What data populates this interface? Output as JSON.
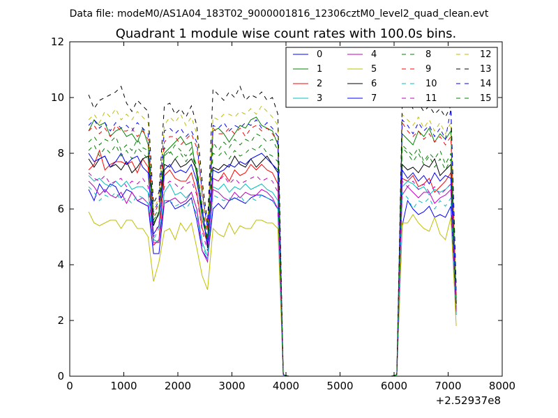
{
  "chart_data": {
    "type": "line",
    "suptitle": "Data file: modeM0/AS1A04_183T02_9000001816_12306cztM0_level2_quad_clean.evt",
    "title": "Quadrant 1 module wise count rates with 100.0s bins.",
    "xlabel": "",
    "ylabel": "",
    "x_offset_label": "+2.52937e8",
    "xlim": [
      0,
      8000
    ],
    "ylim": [
      0,
      12
    ],
    "xticks": [
      0,
      1000,
      2000,
      3000,
      4000,
      5000,
      6000,
      7000,
      8000
    ],
    "yticks": [
      0,
      2,
      4,
      6,
      8,
      10,
      12
    ],
    "grid": false,
    "legend_position": "top-right",
    "legend_columns": 4,
    "x": [
      350,
      450,
      550,
      650,
      750,
      850,
      950,
      1050,
      1150,
      1250,
      1350,
      1450,
      1550,
      1650,
      1750,
      1850,
      1950,
      2050,
      2150,
      2250,
      2350,
      2450,
      2550,
      2650,
      2750,
      2850,
      2950,
      3050,
      3150,
      3250,
      3350,
      3450,
      3550,
      3650,
      3750,
      3850,
      3950,
      4050,
      4150,
      4250,
      4350,
      4450,
      4550,
      4650,
      4750,
      4850,
      4950,
      5050,
      5150,
      5250,
      5350,
      5450,
      5550,
      5650,
      5750,
      5850,
      5950,
      6050,
      6150,
      6250,
      6350,
      6450,
      6550,
      6650,
      6750,
      6850,
      6950,
      7050,
      7150
    ],
    "series": [
      {
        "name": "0",
        "color": "#0000ff",
        "dashed": false,
        "values": [
          6.7,
          6.3,
          6.9,
          6.6,
          6.9,
          6.8,
          6.4,
          6.7,
          6.6,
          6.3,
          6.2,
          6.1,
          4.4,
          4.4,
          6.2,
          6.3,
          6.0,
          6.1,
          6.2,
          6.4,
          5.6,
          4.5,
          4.2,
          6.0,
          6.2,
          6.0,
          6.3,
          6.4,
          6.3,
          6.2,
          6.4,
          6.5,
          6.5,
          6.4,
          6.3,
          6.0,
          0.05,
          0,
          0,
          0,
          0,
          0,
          0,
          0,
          0,
          0,
          0,
          0,
          0,
          0,
          0,
          0,
          0,
          0,
          0,
          0,
          0,
          0.05,
          5.4,
          6.3,
          6.0,
          5.8,
          5.9,
          6.1,
          5.7,
          5.8,
          5.7,
          6.1,
          2.2
        ]
      },
      {
        "name": "1",
        "color": "#008000",
        "dashed": false,
        "values": [
          8.8,
          9.2,
          9.0,
          9.1,
          8.6,
          8.8,
          8.9,
          8.6,
          8.7,
          8.4,
          8.9,
          8.3,
          5.5,
          5.8,
          8.0,
          8.2,
          8.4,
          8.6,
          8.3,
          8.4,
          7.2,
          5.6,
          4.9,
          8.8,
          8.9,
          8.7,
          8.4,
          8.7,
          9.0,
          8.9,
          9.2,
          9.3,
          9.0,
          8.9,
          8.8,
          8.3,
          0.05,
          0,
          0,
          0,
          0,
          0,
          0,
          0,
          0,
          0,
          0,
          0,
          0,
          0,
          0,
          0,
          0,
          0,
          0,
          0,
          0,
          0.05,
          8.7,
          8.5,
          8.3,
          8.8,
          8.6,
          8.9,
          8.4,
          8.7,
          8.5,
          8.8,
          2.6
        ]
      },
      {
        "name": "2",
        "color": "#ff0000",
        "dashed": false,
        "values": [
          7.4,
          7.6,
          8.1,
          7.4,
          7.6,
          7.7,
          7.7,
          7.6,
          7.7,
          7.3,
          7.8,
          7.5,
          4.7,
          4.9,
          7.2,
          7.4,
          7.1,
          7.0,
          7.0,
          7.3,
          6.6,
          5.3,
          4.8,
          7.1,
          7.0,
          7.3,
          7.0,
          7.4,
          7.2,
          7.3,
          7.6,
          7.4,
          7.6,
          7.4,
          7.3,
          6.9,
          0.05,
          0,
          0,
          0,
          0,
          0,
          0,
          0,
          0,
          0,
          0,
          0,
          0,
          0,
          0,
          0,
          0,
          0,
          0,
          0,
          0,
          0.05,
          7.1,
          7.0,
          7.2,
          6.8,
          6.9,
          7.1,
          6.6,
          6.8,
          7.0,
          7.3,
          2.5
        ]
      },
      {
        "name": "3",
        "color": "#00bfbf",
        "dashed": false,
        "values": [
          7.2,
          7.0,
          7.1,
          6.9,
          6.8,
          7.0,
          6.8,
          7.0,
          6.7,
          6.8,
          6.8,
          6.6,
          4.9,
          4.8,
          6.6,
          6.9,
          6.5,
          6.6,
          6.4,
          6.6,
          6.0,
          4.8,
          4.3,
          6.8,
          6.7,
          6.9,
          6.6,
          6.8,
          6.7,
          6.9,
          6.7,
          6.8,
          6.9,
          6.7,
          6.6,
          6.3,
          0.05,
          0,
          0,
          0,
          0,
          0,
          0,
          0,
          0,
          0,
          0,
          0,
          0,
          0,
          0,
          0,
          0,
          0,
          0,
          0,
          0,
          0.05,
          6.8,
          7.0,
          6.9,
          6.7,
          6.8,
          6.5,
          6.7,
          6.6,
          6.7,
          6.9,
          2.4
        ]
      },
      {
        "name": "4",
        "color": "#bf00bf",
        "dashed": false,
        "values": [
          7.0,
          6.8,
          6.5,
          6.7,
          6.5,
          6.4,
          6.6,
          6.2,
          6.6,
          6.3,
          6.4,
          6.2,
          4.8,
          4.8,
          6.3,
          6.3,
          6.4,
          6.2,
          6.3,
          6.6,
          6.0,
          4.5,
          4.1,
          6.7,
          6.6,
          6.4,
          6.3,
          6.6,
          6.4,
          6.6,
          6.5,
          6.5,
          6.7,
          6.6,
          6.4,
          6.0,
          0.05,
          0,
          0,
          0,
          0,
          0,
          0,
          0,
          0,
          0,
          0,
          0,
          0,
          0,
          0,
          0,
          0,
          0,
          0,
          0,
          0,
          0.05,
          6.5,
          6.8,
          6.6,
          6.4,
          6.6,
          6.6,
          6.2,
          6.4,
          6.5,
          6.7,
          2.3
        ]
      },
      {
        "name": "5",
        "color": "#bfbf00",
        "dashed": false,
        "values": [
          5.9,
          5.5,
          5.4,
          5.5,
          5.6,
          5.6,
          5.3,
          5.6,
          5.6,
          5.3,
          5.3,
          5.0,
          3.4,
          4.1,
          5.2,
          5.3,
          4.9,
          5.5,
          5.2,
          5.5,
          4.6,
          3.6,
          3.1,
          5.3,
          5.1,
          5.0,
          5.5,
          5.1,
          5.4,
          5.3,
          5.3,
          5.6,
          5.6,
          5.5,
          5.5,
          5.3,
          0.05,
          0,
          0,
          0,
          0,
          0,
          0,
          0,
          0,
          0,
          0,
          0,
          0,
          0,
          0,
          0,
          0,
          0,
          0,
          0,
          0,
          0.05,
          5.5,
          5.5,
          5.8,
          5.5,
          5.3,
          5.2,
          5.7,
          5.1,
          4.9,
          5.7,
          1.8
        ]
      },
      {
        "name": "6",
        "color": "#000000",
        "dashed": false,
        "values": [
          7.8,
          7.5,
          7.8,
          7.9,
          7.5,
          7.6,
          7.4,
          7.7,
          7.3,
          7.5,
          7.8,
          7.9,
          5.4,
          5.9,
          7.6,
          7.5,
          7.8,
          7.5,
          7.6,
          7.8,
          7.4,
          6.0,
          4.6,
          7.5,
          7.4,
          7.6,
          7.5,
          7.9,
          7.6,
          7.5,
          7.8,
          7.5,
          7.7,
          7.9,
          7.6,
          7.3,
          0.05,
          0,
          0,
          0,
          0,
          0,
          0,
          0,
          0,
          0,
          0,
          0,
          0,
          0,
          0,
          0,
          0,
          0,
          0,
          0,
          0,
          0.05,
          7.6,
          7.4,
          7.5,
          7.3,
          7.6,
          7.5,
          7.8,
          7.2,
          7.4,
          7.6,
          2.6
        ]
      },
      {
        "name": "7",
        "color": "#0000ff",
        "dashed": false,
        "values": [
          8.0,
          7.7,
          7.8,
          7.9,
          7.5,
          7.7,
          8.0,
          7.6,
          7.8,
          7.9,
          7.5,
          7.3,
          5.1,
          5.4,
          7.4,
          7.6,
          7.3,
          7.4,
          7.3,
          7.6,
          7.0,
          5.9,
          4.7,
          7.4,
          7.3,
          7.4,
          7.6,
          7.5,
          7.7,
          7.6,
          7.8,
          7.9,
          8.0,
          7.8,
          7.6,
          7.4,
          0.05,
          0,
          0,
          0,
          0,
          0,
          0,
          0,
          0,
          0,
          0,
          0,
          0,
          0,
          0,
          0,
          0,
          0,
          0,
          0,
          0,
          0.05,
          7.4,
          7.1,
          7.3,
          7.0,
          7.2,
          6.9,
          7.3,
          7.0,
          7.2,
          7.1,
          2.7
        ]
      },
      {
        "name": "8",
        "color": "#008000",
        "dashed": true,
        "values": [
          8.4,
          8.6,
          8.3,
          8.5,
          8.4,
          8.6,
          8.1,
          8.3,
          8.1,
          8.5,
          8.2,
          8.1,
          5.7,
          6.0,
          8.2,
          8.0,
          8.3,
          8.1,
          7.9,
          8.2,
          7.5,
          6.1,
          5.0,
          8.4,
          8.1,
          8.4,
          8.2,
          8.5,
          8.3,
          8.5,
          8.4,
          8.7,
          8.6,
          8.4,
          8.5,
          8.1,
          0.05,
          0,
          0,
          0,
          0,
          0,
          0,
          0,
          0,
          0,
          0,
          0,
          0,
          0,
          0,
          0,
          0,
          0,
          0,
          0,
          0,
          0.05,
          8.3,
          8.1,
          7.9,
          8.2,
          7.7,
          8.0,
          7.8,
          8.1,
          7.6,
          8.0,
          2.8
        ]
      },
      {
        "name": "9",
        "color": "#ff0000",
        "dashed": true,
        "values": [
          8.8,
          9.0,
          8.7,
          8.9,
          8.6,
          9.0,
          8.8,
          8.8,
          8.9,
          8.6,
          8.8,
          8.5,
          5.8,
          6.2,
          8.4,
          8.6,
          8.6,
          8.3,
          8.5,
          8.7,
          8.2,
          6.5,
          5.2,
          8.9,
          8.7,
          8.7,
          8.9,
          8.7,
          8.9,
          8.6,
          8.9,
          9.0,
          8.8,
          8.9,
          8.7,
          8.4,
          0.05,
          0,
          0,
          0,
          0,
          0,
          0,
          0,
          0,
          0,
          0,
          0,
          0,
          0,
          0,
          0,
          0,
          0,
          0,
          0,
          0,
          0.05,
          9.1,
          8.8,
          8.6,
          8.8,
          8.5,
          8.7,
          8.4,
          8.6,
          8.3,
          8.6,
          2.9
        ]
      },
      {
        "name": "10",
        "color": "#00bfbf",
        "dashed": true,
        "values": [
          6.8,
          6.6,
          6.3,
          6.5,
          6.4,
          6.6,
          6.3,
          6.4,
          6.2,
          6.5,
          6.4,
          6.2,
          4.9,
          5.3,
          6.2,
          6.3,
          6.1,
          6.2,
          6.0,
          6.3,
          5.8,
          4.7,
          4.2,
          6.5,
          6.4,
          6.3,
          6.4,
          6.3,
          6.5,
          6.2,
          6.4,
          6.3,
          6.5,
          6.4,
          6.3,
          6.0,
          0.05,
          0,
          0,
          0,
          0,
          0,
          0,
          0,
          0,
          0,
          0,
          0,
          0,
          0,
          0,
          0,
          0,
          0,
          0,
          0,
          0,
          0.05,
          6.6,
          6.4,
          6.0,
          6.3,
          6.2,
          6.4,
          6.0,
          6.3,
          6.1,
          6.4,
          2.2
        ]
      },
      {
        "name": "11",
        "color": "#bf00bf",
        "dashed": true,
        "values": [
          7.3,
          7.1,
          7.0,
          7.2,
          6.9,
          7.0,
          7.1,
          6.8,
          7.0,
          6.9,
          7.1,
          6.8,
          5.0,
          5.5,
          6.8,
          7.0,
          6.9,
          6.7,
          6.9,
          7.0,
          6.5,
          5.2,
          4.5,
          7.1,
          7.0,
          7.2,
          6.9,
          7.1,
          6.9,
          7.0,
          7.1,
          7.2,
          7.0,
          7.1,
          7.0,
          6.6,
          0.05,
          0,
          0,
          0,
          0,
          0,
          0,
          0,
          0,
          0,
          0,
          0,
          0,
          0,
          0,
          0,
          0,
          0,
          0,
          0,
          0,
          0.05,
          7.0,
          6.8,
          7.0,
          6.7,
          6.9,
          6.6,
          6.8,
          6.5,
          6.7,
          6.9,
          2.3
        ]
      },
      {
        "name": "12",
        "color": "#bfbf00",
        "dashed": true,
        "values": [
          9.2,
          9.4,
          9.1,
          9.5,
          9.3,
          9.6,
          9.2,
          9.4,
          9.2,
          9.5,
          9.3,
          9.1,
          6.0,
          6.4,
          9.0,
          9.3,
          9.1,
          9.4,
          9.0,
          9.3,
          8.7,
          6.8,
          5.4,
          9.3,
          9.2,
          9.4,
          9.4,
          9.3,
          9.5,
          9.4,
          9.6,
          9.4,
          9.7,
          9.5,
          9.3,
          9.0,
          0.05,
          0,
          0,
          0,
          0,
          0,
          0,
          0,
          0,
          0,
          0,
          0,
          0,
          0,
          0,
          0,
          0,
          0,
          0,
          0,
          0,
          0.05,
          9.4,
          9.2,
          9.0,
          9.3,
          8.9,
          9.2,
          8.8,
          9.1,
          8.7,
          9.1,
          3.0
        ]
      },
      {
        "name": "13",
        "color": "#000000",
        "dashed": true,
        "values": [
          10.1,
          9.6,
          9.9,
          10.0,
          10.1,
          10.2,
          10.4,
          9.8,
          9.5,
          9.9,
          9.7,
          9.5,
          6.2,
          6.6,
          9.7,
          9.8,
          9.4,
          9.6,
          9.3,
          9.7,
          9.0,
          7.0,
          5.5,
          10.3,
          10.1,
          9.9,
          10.2,
          10.0,
          10.4,
          9.9,
          10.1,
          10.0,
          10.2,
          9.9,
          10.0,
          9.4,
          0.05,
          0,
          0,
          0,
          0,
          0,
          0,
          0,
          0,
          0,
          0,
          0,
          0,
          0,
          0,
          0,
          0,
          0,
          0,
          0,
          0,
          0.05,
          9.7,
          9.9,
          9.6,
          9.8,
          9.5,
          9.7,
          9.4,
          9.6,
          9.3,
          9.7,
          3.2
        ]
      },
      {
        "name": "14",
        "color": "#0000ff",
        "dashed": true,
        "values": [
          9.0,
          9.2,
          8.9,
          9.1,
          8.8,
          9.1,
          8.9,
          9.0,
          8.8,
          9.1,
          8.9,
          8.7,
          5.9,
          6.3,
          8.8,
          8.9,
          8.7,
          8.9,
          8.6,
          8.8,
          8.4,
          6.6,
          5.3,
          9.0,
          8.9,
          9.1,
          8.8,
          9.0,
          8.9,
          9.1,
          9.0,
          9.2,
          8.9,
          9.1,
          8.9,
          8.6,
          0.05,
          0,
          0,
          0,
          0,
          0,
          0,
          0,
          0,
          0,
          0,
          0,
          0,
          0,
          0,
          0,
          0,
          0,
          0,
          0,
          0,
          0.05,
          9.2,
          9.0,
          8.7,
          9.1,
          8.8,
          9.0,
          8.6,
          8.9,
          8.5,
          9.6,
          3.0
        ]
      },
      {
        "name": "15",
        "color": "#008000",
        "dashed": true,
        "values": [
          8.1,
          8.3,
          7.9,
          8.2,
          8.0,
          8.3,
          7.9,
          8.1,
          7.8,
          8.2,
          8.0,
          7.8,
          5.6,
          5.9,
          7.9,
          8.1,
          7.8,
          8.0,
          7.7,
          8.0,
          7.4,
          6.0,
          4.9,
          8.0,
          7.9,
          8.1,
          7.8,
          8.1,
          7.9,
          8.0,
          8.2,
          8.1,
          8.3,
          8.0,
          7.9,
          7.7,
          0.05,
          0,
          0,
          0,
          0,
          0,
          0,
          0,
          0,
          0,
          0,
          0,
          0,
          0,
          0,
          0,
          0,
          0,
          0,
          0,
          0,
          0.05,
          8.2,
          8.0,
          7.7,
          8.0,
          7.6,
          7.9,
          7.5,
          7.8,
          7.4,
          7.8,
          2.7
        ]
      }
    ]
  }
}
